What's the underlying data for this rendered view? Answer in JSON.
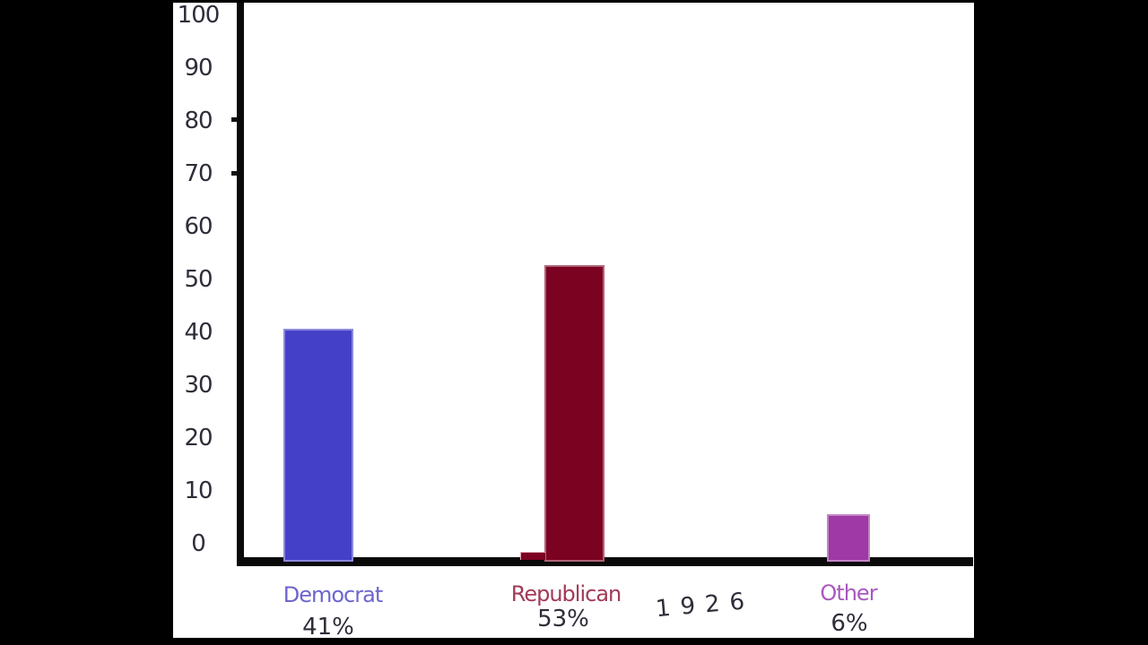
{
  "frame": {
    "background_color": "#000000",
    "canvas_color": "#ffffff",
    "axis_color": "#0a0a0a",
    "tick_text_color": "#2e2e3a"
  },
  "chart_data": {
    "type": "bar",
    "title": "",
    "xlabel": "",
    "ylabel": "",
    "year_label": "1926",
    "categories": [
      "Democrat",
      "Republican",
      "Other"
    ],
    "values": [
      41,
      53,
      6
    ],
    "value_labels": [
      "41%",
      "53%",
      "6%"
    ],
    "bar_colors": [
      "#4440c8",
      "#7c0222",
      "#9e39a5"
    ],
    "category_label_colors": [
      "#6e65cd",
      "#a23a58",
      "#ab57c1"
    ],
    "ylim": [
      0,
      100
    ],
    "y_ticks": [
      0,
      10,
      20,
      30,
      40,
      50,
      60,
      70,
      80,
      90,
      100
    ],
    "grid": false,
    "legend": "none"
  }
}
